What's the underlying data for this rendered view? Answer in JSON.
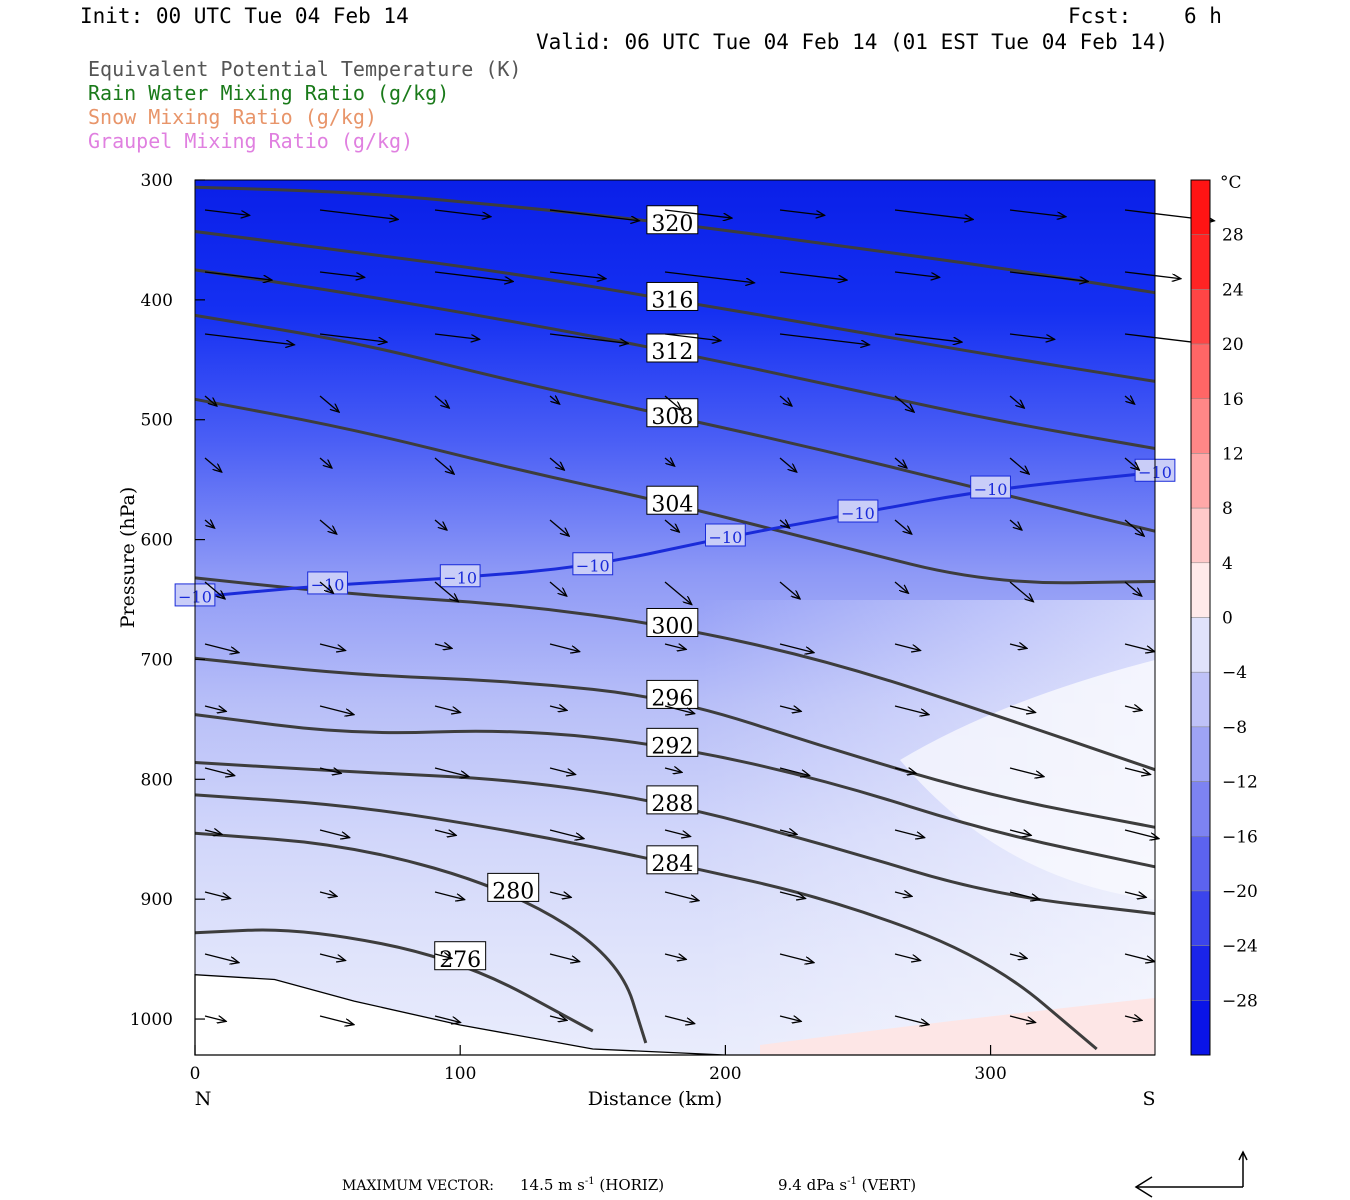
{
  "header": {
    "init": "Init: 00 UTC Tue 04 Feb 14",
    "fcst_label": "Fcst:",
    "fcst_value": "6 h",
    "valid": "Valid: 06 UTC Tue 04 Feb 14 (01 EST Tue 04 Feb 14)"
  },
  "legend": [
    {
      "text": "Equivalent Potential Temperature (K)",
      "color": "#555555"
    },
    {
      "text": "Rain Water Mixing Ratio (g/kg)",
      "color": "#1a7a1a"
    },
    {
      "text": "Snow Mixing Ratio (g/kg)",
      "color": "#e8956a"
    },
    {
      "text": "Graupel Mixing Ratio (g/kg)",
      "color": "#e080e0"
    }
  ],
  "footer": {
    "max_vector_label": "MAXIMUM VECTOR:",
    "horiz_value": "14.5 m s",
    "horiz_exp": "-1",
    "horiz_tag": "(HORIZ)",
    "vert_value": "9.4 dPa s",
    "vert_exp": "-1",
    "vert_tag": "(VERT)"
  },
  "chart_data": {
    "type": "cross-section",
    "xlabel": "Distance (km)",
    "ylabel": "Pressure (hPa)",
    "x_left_label": "N",
    "x_right_label": "S",
    "xlim": [
      0,
      362
    ],
    "ylim": [
      300,
      1030
    ],
    "x_ticks": [
      0,
      100,
      200,
      300
    ],
    "y_ticks": [
      300,
      400,
      500,
      600,
      700,
      800,
      900,
      1000
    ],
    "colorbar": {
      "unit": "°C",
      "range": [
        -32,
        32
      ],
      "step": 4,
      "tick_labels": [
        28,
        24,
        20,
        16,
        12,
        8,
        4,
        0,
        -4,
        -8,
        -12,
        -16,
        -20,
        -24,
        -28
      ]
    },
    "theta_e_contours": [
      {
        "value": 320,
        "points": [
          [
            0,
            306
          ],
          [
            60,
            310
          ],
          [
            120,
            322
          ],
          [
            180,
            336
          ],
          [
            240,
            354
          ],
          [
            300,
            372
          ],
          [
            362,
            394
          ]
        ]
      },
      {
        "value": 316,
        "points": [
          [
            0,
            343
          ],
          [
            60,
            360
          ],
          [
            120,
            378
          ],
          [
            180,
            400
          ],
          [
            240,
            423
          ],
          [
            300,
            446
          ],
          [
            362,
            468
          ]
        ]
      },
      {
        "value": 312,
        "points": [
          [
            0,
            375
          ],
          [
            60,
            395
          ],
          [
            120,
            418
          ],
          [
            180,
            443
          ],
          [
            240,
            471
          ],
          [
            300,
            500
          ],
          [
            362,
            524
          ]
        ]
      },
      {
        "value": 308,
        "points": [
          [
            0,
            413
          ],
          [
            60,
            435
          ],
          [
            120,
            468
          ],
          [
            180,
            497
          ],
          [
            240,
            527
          ],
          [
            300,
            560
          ],
          [
            362,
            593
          ]
        ]
      },
      {
        "value": 304,
        "points": [
          [
            0,
            483
          ],
          [
            60,
            508
          ],
          [
            120,
            541
          ],
          [
            180,
            570
          ],
          [
            240,
            604
          ],
          [
            300,
            637
          ],
          [
            362,
            635
          ]
        ]
      },
      {
        "value": 300,
        "points": [
          [
            0,
            632
          ],
          [
            60,
            646
          ],
          [
            120,
            654
          ],
          [
            180,
            672
          ],
          [
            240,
            702
          ],
          [
            300,
            745
          ],
          [
            362,
            792
          ]
        ]
      },
      {
        "value": 296,
        "points": [
          [
            0,
            699
          ],
          [
            60,
            713
          ],
          [
            120,
            718
          ],
          [
            180,
            732
          ],
          [
            240,
            775
          ],
          [
            300,
            814
          ],
          [
            362,
            840
          ]
        ]
      },
      {
        "value": 292,
        "points": [
          [
            0,
            746
          ],
          [
            60,
            763
          ],
          [
            120,
            758
          ],
          [
            180,
            772
          ],
          [
            240,
            802
          ],
          [
            300,
            844
          ],
          [
            362,
            873
          ]
        ]
      },
      {
        "value": 288,
        "points": [
          [
            0,
            786
          ],
          [
            60,
            794
          ],
          [
            120,
            800
          ],
          [
            180,
            820
          ],
          [
            240,
            856
          ],
          [
            300,
            896
          ],
          [
            362,
            912
          ]
        ]
      },
      {
        "value": 284,
        "points": [
          [
            0,
            813
          ],
          [
            60,
            822
          ],
          [
            120,
            843
          ],
          [
            180,
            870
          ],
          [
            240,
            900
          ],
          [
            300,
            950
          ],
          [
            340,
            1025
          ]
        ]
      },
      {
        "value": 280,
        "points": [
          [
            0,
            845
          ],
          [
            60,
            855
          ],
          [
            120,
            893
          ],
          [
            160,
            950
          ],
          [
            170,
            1020
          ]
        ]
      },
      {
        "value": 276,
        "points": [
          [
            0,
            928
          ],
          [
            40,
            924
          ],
          [
            100,
            950
          ],
          [
            150,
            1010
          ]
        ]
      }
    ],
    "temperature_isotherm": {
      "value": -10,
      "points": [
        [
          0,
          648
        ],
        [
          50,
          638
        ],
        [
          100,
          632
        ],
        [
          150,
          622
        ],
        [
          200,
          598
        ],
        [
          250,
          578
        ],
        [
          300,
          558
        ],
        [
          362,
          544
        ]
      ]
    },
    "rain_water": [],
    "snow": [],
    "graupel": [],
    "max_vector": {
      "horiz": 14.5,
      "horiz_unit": "m s-1",
      "vert": 9.4,
      "vert_unit": "dPa s-1"
    }
  }
}
